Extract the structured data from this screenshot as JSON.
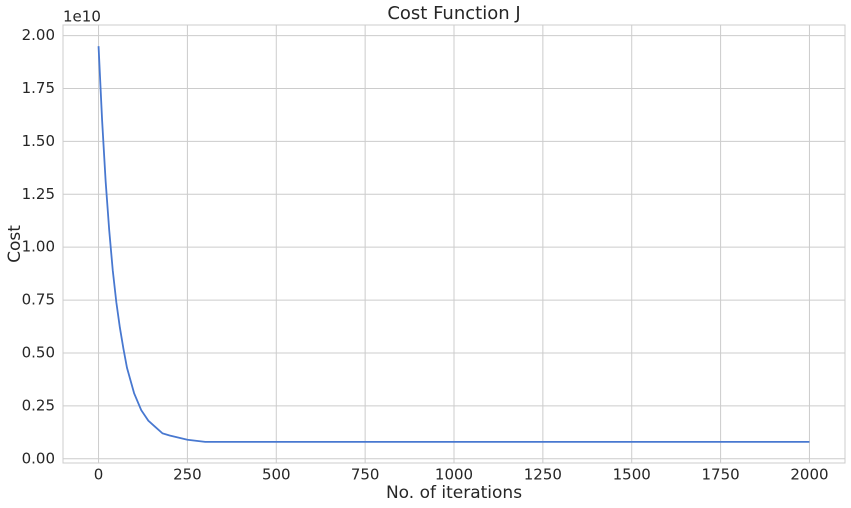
{
  "chart_data": {
    "type": "line",
    "title": "Cost Function J",
    "x_label": "No. of iterations",
    "y_label": "Cost",
    "y_offset_label": "1e10",
    "x": [
      0,
      10,
      20,
      30,
      40,
      50,
      60,
      70,
      80,
      90,
      100,
      120,
      140,
      160,
      180,
      200,
      250,
      300,
      400,
      500,
      1000,
      1500,
      2000
    ],
    "series": [
      {
        "name": "Cost",
        "color": "#4878d0",
        "values": [
          1.95,
          1.6,
          1.31,
          1.08,
          0.89,
          0.74,
          0.62,
          0.52,
          0.43,
          0.37,
          0.31,
          0.23,
          0.18,
          0.15,
          0.12,
          0.11,
          0.09,
          0.08,
          0.08,
          0.08,
          0.08,
          0.08,
          0.08
        ]
      }
    ],
    "xlim": [
      -100,
      2100
    ],
    "ylim": [
      -0.02,
      2.05
    ],
    "xticks": [
      0,
      250,
      500,
      750,
      1000,
      1250,
      1500,
      1750,
      2000
    ],
    "yticks": [
      {
        "value": 0,
        "label": "0.00"
      },
      {
        "value": 0.25,
        "label": "0.25"
      },
      {
        "value": 0.5,
        "label": "0.50"
      },
      {
        "value": 0.75,
        "label": "0.75"
      },
      {
        "value": 1,
        "label": "1.00"
      },
      {
        "value": 1.25,
        "label": "1.25"
      },
      {
        "value": 1.5,
        "label": "1.50"
      },
      {
        "value": 1.75,
        "label": "1.75"
      },
      {
        "value": 2,
        "label": "2.00"
      }
    ],
    "grid": true
  }
}
